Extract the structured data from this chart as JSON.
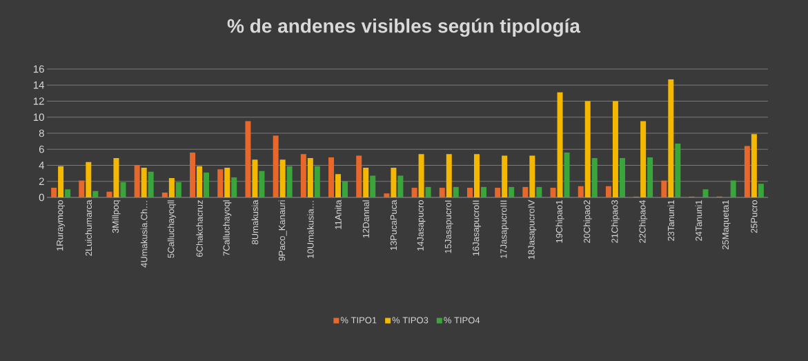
{
  "chart_data": {
    "type": "bar",
    "title": "% de andenes visibles según tipología",
    "categories": [
      "1Ruraymoqo",
      "2Luichumarca",
      "3Millpoq",
      "4Umakusia.Ch…",
      "5Calluchayoqll",
      "6Chakchacruz",
      "7Calluchayoql",
      "8Umakusia",
      "9Paco_Kanauri",
      "10Umakusia…",
      "11Anita",
      "12Dannal",
      "13PucaPuca",
      "14Jasapucro",
      "15JasapucroI",
      "16JasapucroII",
      "17JasapucroIII",
      "18JasapucroIV",
      "19Chipao1",
      "20Chipao2",
      "21Chipao3",
      "22Chipao4",
      "23Tanuni1",
      "24Tanuni1",
      "25Maqueta1",
      "25Pucro"
    ],
    "series": [
      {
        "name": "% TIPO1",
        "color": "#e8672a",
        "values": [
          1.2,
          2.1,
          0.7,
          4.0,
          0.6,
          5.6,
          3.5,
          9.5,
          7.7,
          5.4,
          5.0,
          5.2,
          0.5,
          1.2,
          1.2,
          1.2,
          1.2,
          1.3,
          1.2,
          1.4,
          1.4,
          0.1,
          2.1,
          0.1,
          0.1,
          6.4
        ]
      },
      {
        "name": "% TIPO3",
        "color": "#f4b800",
        "values": [
          3.9,
          4.4,
          4.9,
          3.7,
          2.4,
          3.9,
          3.7,
          4.7,
          4.7,
          4.9,
          2.9,
          3.7,
          3.7,
          5.4,
          5.4,
          5.4,
          5.2,
          5.2,
          13.1,
          12.0,
          12.0,
          9.5,
          14.7,
          0,
          0,
          7.9
        ]
      },
      {
        "name": "% TIPO4",
        "color": "#3aa53a",
        "values": [
          1.0,
          0.8,
          1.9,
          3.2,
          1.9,
          3.1,
          2.5,
          3.3,
          3.9,
          3.9,
          2.0,
          2.7,
          2.7,
          1.3,
          1.3,
          1.3,
          1.3,
          1.3,
          5.6,
          4.9,
          4.9,
          5.0,
          6.7,
          1.0,
          2.1,
          1.7
        ]
      }
    ],
    "ylim": [
      0,
      16
    ],
    "yticks": [
      0,
      2,
      4,
      6,
      8,
      10,
      12,
      14,
      16
    ],
    "grid": "y",
    "legend": "bottom"
  }
}
